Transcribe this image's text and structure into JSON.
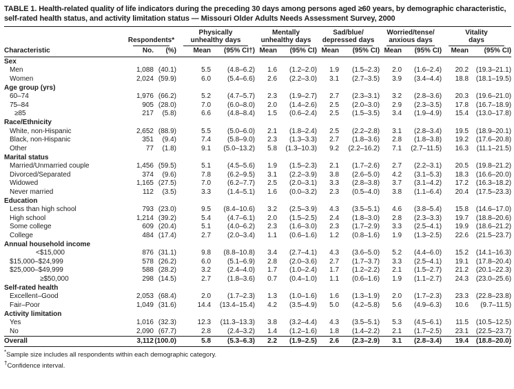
{
  "title": "TABLE 1. Health-related quality of life indicators during the preceding 30 days among persons aged ≥60 years, by demographic characteristic, self-rated health status, and activity limitation status — Missouri Older Adults Needs Assessment Survey, 2000",
  "header": {
    "characteristic": "Characteristic",
    "groups": [
      {
        "label": "Respondents*",
        "mean": "No.",
        "ci": "(%)"
      },
      {
        "label": "Physically\nunhealthy days",
        "mean": "Mean",
        "ci": "(95% CI†)"
      },
      {
        "label": "Mentally\nunhealthy days",
        "mean": "Mean",
        "ci": "(95% CI)"
      },
      {
        "label": "Sad/blue/\ndepressed days",
        "mean": "Mean",
        "ci": "(95% CI)"
      },
      {
        "label": "Worried/tense/\nanxious days",
        "mean": "Mean",
        "ci": "(95% CI)"
      },
      {
        "label": "Vitality\ndays",
        "mean": "Mean",
        "ci": "(95% CI)"
      }
    ]
  },
  "sections": [
    {
      "header": "Sex",
      "rows": [
        {
          "label": "Men",
          "indent": 1,
          "cells": [
            "1,088",
            "(40.1)",
            "5.5",
            "(4.8–6.2)",
            "1.6",
            "(1.2–2.0)",
            "1.9",
            "(1.5–2.3)",
            "2.0",
            "(1.6–2.4)",
            "20.2",
            "(19.3–21.1)"
          ]
        },
        {
          "label": "Women",
          "indent": 1,
          "cells": [
            "2,024",
            "(59.9)",
            "6.0",
            "(5.4–6.6)",
            "2.6",
            "(2.2–3.0)",
            "3.1",
            "(2.7–3.5)",
            "3.9",
            "(3.4–4.4)",
            "18.8",
            "(18.1–19.5)"
          ]
        }
      ]
    },
    {
      "header": "Age group (yrs)",
      "rows": [
        {
          "label": "60–74",
          "indent": 1,
          "cells": [
            "1,976",
            "(66.2)",
            "5.2",
            "(4.7–5.7)",
            "2.3",
            "(1.9–2.7)",
            "2.7",
            "(2.3–3.1)",
            "3.2",
            "(2.8–3.6)",
            "20.3",
            "(19.6–21.0)"
          ]
        },
        {
          "label": "75–84",
          "indent": 1,
          "cells": [
            "905",
            "(28.0)",
            "7.0",
            "(6.0–8.0)",
            "2.0",
            "(1.4–2.6)",
            "2.5",
            "(2.0–3.0)",
            "2.9",
            "(2.3–3.5)",
            "17.8",
            "(16.7–18.9)"
          ]
        },
        {
          "label": "≥85",
          "indent": 2,
          "cells": [
            "217",
            "(5.8)",
            "6.6",
            "(4.8–8.4)",
            "1.5",
            "(0.6–2.4)",
            "2.5",
            "(1.5–3.5)",
            "3.4",
            "(1.9–4.9)",
            "15.4",
            "(13.0–17.8)"
          ]
        }
      ]
    },
    {
      "header": "Race/Ethnicity",
      "rows": [
        {
          "label": "White, non-Hispanic",
          "indent": 1,
          "cells": [
            "2,652",
            "(88.9)",
            "5.5",
            "(5.0–6.0)",
            "2.1",
            "(1.8–2.4)",
            "2.5",
            "(2.2–2.8)",
            "3.1",
            "(2.8–3.4)",
            "19.5",
            "(18.9–20.1)"
          ]
        },
        {
          "label": "Black, non-Hispanic",
          "indent": 1,
          "cells": [
            "351",
            "(9.4)",
            "7.4",
            "(5.8–9.0)",
            "2.3",
            "(1.3–3.3)",
            "2.7",
            "(1.8–3.6)",
            "2.8",
            "(1.8–3.8)",
            "19.2",
            "(17.6–20.8)"
          ]
        },
        {
          "label": "Other",
          "indent": 1,
          "cells": [
            "77",
            "(1.8)",
            "9.1",
            "(5.0–13.2)",
            "5.8",
            "(1.3–10.3)",
            "9.2",
            "(2.2–16.2)",
            "7.1",
            "(2.7–11.5)",
            "16.3",
            "(11.1–21.5)"
          ]
        }
      ]
    },
    {
      "header": "Marital status",
      "rows": [
        {
          "label": "Married/Unmarried couple",
          "indent": 1,
          "cells": [
            "1,456",
            "(59.5)",
            "5.1",
            "(4.5–5.6)",
            "1.9",
            "(1.5–2.3)",
            "2.1",
            "(1.7–2.6)",
            "2.7",
            "(2.2–3.1)",
            "20.5",
            "(19.8–21.2)"
          ]
        },
        {
          "label": "Divorced/Separated",
          "indent": 1,
          "cells": [
            "374",
            "(9.6)",
            "7.8",
            "(6.2–9.5)",
            "3.1",
            "(2.2–3.9)",
            "3.8",
            "(2.6–5.0)",
            "4.2",
            "(3.1–5.3)",
            "18.3",
            "(16.6–20.0)"
          ]
        },
        {
          "label": "Widowed",
          "indent": 1,
          "cells": [
            "1,165",
            "(27.5)",
            "7.0",
            "(6.2–7.7)",
            "2.5",
            "(2.0–3.1)",
            "3.3",
            "(2.8–3.8)",
            "3.7",
            "(3.1–4.2)",
            "17.2",
            "(16.3–18.2)"
          ]
        },
        {
          "label": "Never married",
          "indent": 1,
          "cells": [
            "112",
            "(3.5)",
            "3.3",
            "(1.4–5.1)",
            "1.6",
            "(0.0–3.2)",
            "2.3",
            "(0.5–4.0)",
            "3.8",
            "(1.1–6.4)",
            "20.4",
            "(17.5–23.3)"
          ]
        }
      ]
    },
    {
      "header": "Education",
      "rows": [
        {
          "label": "Less than high school",
          "indent": 1,
          "cells": [
            "793",
            "(23.0)",
            "9.5",
            "(8.4–10.6)",
            "3.2",
            "(2.5–3.9)",
            "4.3",
            "(3.5–5.1)",
            "4.6",
            "(3.8–5.4)",
            "15.8",
            "(14.6–17.0)"
          ]
        },
        {
          "label": "High school",
          "indent": 1,
          "cells": [
            "1,214",
            "(39.2)",
            "5.4",
            "(4.7–6.1)",
            "2.0",
            "(1.5–2.5)",
            "2.4",
            "(1.8–3.0)",
            "2.8",
            "(2.3–3.3)",
            "19.7",
            "(18.8–20.6)"
          ]
        },
        {
          "label": "Some college",
          "indent": 1,
          "cells": [
            "609",
            "(20.4)",
            "5.1",
            "(4.0–6.2)",
            "2.3",
            "(1.6–3.0)",
            "2.3",
            "(1.7–2.9)",
            "3.3",
            "(2.5–4.1)",
            "19.9",
            "(18.6–21.2)"
          ]
        },
        {
          "label": "College",
          "indent": 1,
          "cells": [
            "484",
            "(17.4)",
            "2.7",
            "(2.0–3.4)",
            "1.1",
            "(0.6–1.6)",
            "1.2",
            "(0.8–1.6)",
            "1.9",
            "(1.3–2.5)",
            "22.6",
            "(21.5–23.7)"
          ]
        }
      ]
    },
    {
      "header": "Annual household income",
      "rows": [
        {
          "label": "<$15,000",
          "indent": 3,
          "cells": [
            "876",
            "(31.1)",
            "9.8",
            "(8.8–10.8)",
            "3.4",
            "(2.7–4.1)",
            "4.3",
            "(3.6–5.0)",
            "5.2",
            "(4.4–6.0)",
            "15.2",
            "(14.1–16.3)"
          ]
        },
        {
          "label": "$15,000–$24,999",
          "indent": 1,
          "cells": [
            "578",
            "(26.2)",
            "6.0",
            "(5.1–6.9)",
            "2.8",
            "(2.0–3.6)",
            "2.7",
            "(1.7–3.7)",
            "3.3",
            "(2.5–4.1)",
            "19.1",
            "(17.8–20.4)"
          ]
        },
        {
          "label": "$25,000–$49,999",
          "indent": 1,
          "cells": [
            "588",
            "(28.2)",
            "3.2",
            "(2.4–4.0)",
            "1.7",
            "(1.0–2.4)",
            "1.7",
            "(1.2–2.2)",
            "2.1",
            "(1.5–2.7)",
            "21.2",
            "(20.1–22.3)"
          ]
        },
        {
          "label": "≥$50,000",
          "indent": 4,
          "cells": [
            "298",
            "(14.5)",
            "2.7",
            "(1.8–3.6)",
            "0.7",
            "(0.4–1.0)",
            "1.1",
            "(0.6–1.6)",
            "1.9",
            "(1.1–2.7)",
            "24.3",
            "(23.0–25.6)"
          ]
        }
      ]
    },
    {
      "header": "Self-rated health",
      "rows": [
        {
          "label": "Excellent–Good",
          "indent": 1,
          "cells": [
            "2,053",
            "(68.4)",
            "2.0",
            "(1.7–2.3)",
            "1.3",
            "(1.0–1.6)",
            "1.6",
            "(1.3–1.9)",
            "2.0",
            "(1.7–2.3)",
            "23.3",
            "(22.8–23.8)"
          ]
        },
        {
          "label": "Fair–Poor",
          "indent": 1,
          "cells": [
            "1,049",
            "(31.6)",
            "14.4",
            "(13.4–15.4)",
            "4.2",
            "(3.5–4.9)",
            "5.0",
            "(4.2–5.8)",
            "5.6",
            "(4.9–6.3)",
            "10.6",
            "(9.7–11.5)"
          ]
        }
      ]
    },
    {
      "header": "Activity limitation",
      "rows": [
        {
          "label": "Yes",
          "indent": 1,
          "cells": [
            "1,016",
            "(32.3)",
            "12.3",
            "(11.3–13.3)",
            "3.8",
            "(3.2–4.4)",
            "4.3",
            "(3.5–5.1)",
            "5.3",
            "(4.5–6.1)",
            "11.5",
            "(10.5–12.5)"
          ]
        },
        {
          "label": "No",
          "indent": 1,
          "cells": [
            "2,090",
            "(67.7)",
            "2.8",
            "(2.4–3.2)",
            "1.4",
            "(1.2–1.6)",
            "1.8",
            "(1.4–2.2)",
            "2.1",
            "(1.7–2.5)",
            "23.1",
            "(22.5–23.7)"
          ]
        }
      ]
    },
    {
      "header": "Overall",
      "rows": []
    }
  ],
  "overall": {
    "label": "Overall",
    "cells": [
      "3,112",
      "(100.0)",
      "5.8",
      "(5.3–6.3)",
      "2.2",
      "(1.9–2.5)",
      "2.6",
      "(2.3–2.9)",
      "3.1",
      "(2.8–3.4)",
      "19.4",
      "(18.8–20.0)"
    ]
  },
  "footnotes": [
    {
      "marker": "*",
      "text": "Sample size includes all respondents within each demographic category."
    },
    {
      "marker": "†",
      "text": "Confidence interval."
    }
  ]
}
